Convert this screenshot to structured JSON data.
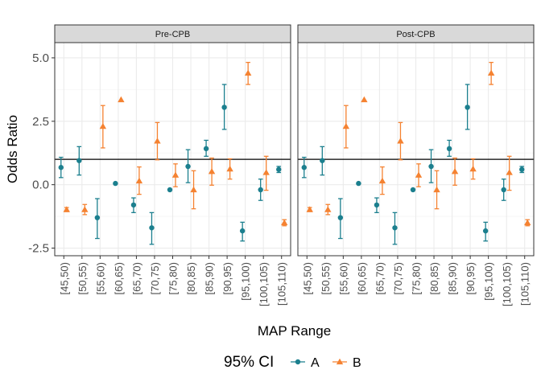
{
  "chart_data": {
    "type": "scatter",
    "subtype": "point-errorbar",
    "xlabel": "MAP Range",
    "ylabel": "Odds Ratio",
    "ylim": [
      -2.8,
      5.6
    ],
    "yticks": [
      -2.5,
      0.0,
      2.5,
      5.0
    ],
    "ytick_labels": [
      "-2.5",
      "0.0",
      "2.5",
      "5.0"
    ],
    "reference_line_y": 1,
    "grid": true,
    "legend": {
      "title": "95% CI",
      "position": "bottom"
    },
    "categories": [
      "[45,50)",
      "[50,55)",
      "[55,60)",
      "[60,65)",
      "[65,70)",
      "[70,75)",
      "[75,80)",
      "[80,85)",
      "[85,90)",
      "[90,95)",
      "[95,100)",
      "[100,105)",
      "[105,110)"
    ],
    "panels": [
      {
        "label": "Pre-CPB",
        "series": [
          {
            "name": "A",
            "color": "#1b7f8e",
            "marker": "circle",
            "points": [
              {
                "x": "[45,50)",
                "y": 0.68,
                "lo": 0.28,
                "hi": 1.08
              },
              {
                "x": "[50,55)",
                "y": 0.95,
                "lo": 0.38,
                "hi": 1.5
              },
              {
                "x": "[55,60)",
                "y": -1.3,
                "lo": -2.12,
                "hi": -0.55
              },
              {
                "x": "[60,65)",
                "y": 0.05,
                "lo": 0.05,
                "hi": 0.05
              },
              {
                "x": "[65,70)",
                "y": -0.8,
                "lo": -1.1,
                "hi": -0.52
              },
              {
                "x": "[70,75)",
                "y": -1.7,
                "lo": -2.35,
                "hi": -1.1
              },
              {
                "x": "[75,80)",
                "y": -0.2,
                "lo": -0.2,
                "hi": -0.2
              },
              {
                "x": "[80,85)",
                "y": 0.72,
                "lo": 0.08,
                "hi": 1.38
              },
              {
                "x": "[85,90)",
                "y": 1.42,
                "lo": 1.12,
                "hi": 1.75
              },
              {
                "x": "[90,95)",
                "y": 3.05,
                "lo": 2.18,
                "hi": 3.95
              },
              {
                "x": "[95,100)",
                "y": -1.82,
                "lo": -2.22,
                "hi": -1.48
              },
              {
                "x": "[100,105)",
                "y": -0.2,
                "lo": -0.62,
                "hi": 0.22
              },
              {
                "x": "[105,110)",
                "y": 0.6,
                "lo": 0.48,
                "hi": 0.72
              }
            ]
          },
          {
            "name": "B",
            "color": "#f58231",
            "marker": "triangle",
            "points": [
              {
                "x": "[45,50)",
                "y": -0.98,
                "lo": -1.06,
                "hi": -0.9
              },
              {
                "x": "[50,55)",
                "y": -0.98,
                "lo": -1.18,
                "hi": -0.78
              },
              {
                "x": "[55,60)",
                "y": 2.3,
                "lo": 1.45,
                "hi": 3.12
              },
              {
                "x": "[60,65)",
                "y": 3.35,
                "lo": 3.35,
                "hi": 3.35
              },
              {
                "x": "[65,70)",
                "y": 0.15,
                "lo": -0.38,
                "hi": 0.7
              },
              {
                "x": "[70,75)",
                "y": 1.72,
                "lo": 0.98,
                "hi": 2.45
              },
              {
                "x": "[75,80)",
                "y": 0.38,
                "lo": -0.08,
                "hi": 0.82
              },
              {
                "x": "[80,85)",
                "y": -0.2,
                "lo": -0.95,
                "hi": 0.55
              },
              {
                "x": "[85,90)",
                "y": 0.52,
                "lo": -0.02,
                "hi": 1.05
              },
              {
                "x": "[90,95)",
                "y": 0.62,
                "lo": 0.22,
                "hi": 1.02
              },
              {
                "x": "[95,100)",
                "y": 4.4,
                "lo": 3.95,
                "hi": 4.82
              },
              {
                "x": "[100,105)",
                "y": 0.48,
                "lo": -0.22,
                "hi": 1.12
              },
              {
                "x": "[105,110)",
                "y": -1.5,
                "lo": -1.62,
                "hi": -1.38
              }
            ]
          }
        ]
      },
      {
        "label": "Post-CPB",
        "series": [
          {
            "name": "A",
            "color": "#1b7f8e",
            "marker": "circle",
            "points": [
              {
                "x": "[45,50)",
                "y": 0.68,
                "lo": 0.28,
                "hi": 1.08
              },
              {
                "x": "[50,55)",
                "y": 0.95,
                "lo": 0.38,
                "hi": 1.5
              },
              {
                "x": "[55,60)",
                "y": -1.3,
                "lo": -2.12,
                "hi": -0.55
              },
              {
                "x": "[60,65)",
                "y": 0.05,
                "lo": 0.05,
                "hi": 0.05
              },
              {
                "x": "[65,70)",
                "y": -0.8,
                "lo": -1.1,
                "hi": -0.52
              },
              {
                "x": "[70,75)",
                "y": -1.7,
                "lo": -2.35,
                "hi": -1.1
              },
              {
                "x": "[75,80)",
                "y": -0.2,
                "lo": -0.2,
                "hi": -0.2
              },
              {
                "x": "[80,85)",
                "y": 0.72,
                "lo": 0.08,
                "hi": 1.38
              },
              {
                "x": "[85,90)",
                "y": 1.42,
                "lo": 1.12,
                "hi": 1.75
              },
              {
                "x": "[90,95)",
                "y": 3.05,
                "lo": 2.18,
                "hi": 3.95
              },
              {
                "x": "[95,100)",
                "y": -1.82,
                "lo": -2.22,
                "hi": -1.48
              },
              {
                "x": "[100,105)",
                "y": -0.2,
                "lo": -0.62,
                "hi": 0.22
              },
              {
                "x": "[105,110)",
                "y": 0.6,
                "lo": 0.48,
                "hi": 0.72
              }
            ]
          },
          {
            "name": "B",
            "color": "#f58231",
            "marker": "triangle",
            "points": [
              {
                "x": "[45,50)",
                "y": -0.98,
                "lo": -1.06,
                "hi": -0.9
              },
              {
                "x": "[50,55)",
                "y": -0.98,
                "lo": -1.18,
                "hi": -0.78
              },
              {
                "x": "[55,60)",
                "y": 2.3,
                "lo": 1.45,
                "hi": 3.12
              },
              {
                "x": "[60,65)",
                "y": 3.35,
                "lo": 3.35,
                "hi": 3.35
              },
              {
                "x": "[65,70)",
                "y": 0.15,
                "lo": -0.38,
                "hi": 0.7
              },
              {
                "x": "[70,75)",
                "y": 1.72,
                "lo": 0.98,
                "hi": 2.45
              },
              {
                "x": "[75,80)",
                "y": 0.38,
                "lo": -0.08,
                "hi": 0.82
              },
              {
                "x": "[80,85)",
                "y": -0.2,
                "lo": -0.95,
                "hi": 0.55
              },
              {
                "x": "[85,90)",
                "y": 0.52,
                "lo": -0.02,
                "hi": 1.05
              },
              {
                "x": "[90,95)",
                "y": 0.62,
                "lo": 0.22,
                "hi": 1.02
              },
              {
                "x": "[95,100)",
                "y": 4.4,
                "lo": 3.95,
                "hi": 4.82
              },
              {
                "x": "[100,105)",
                "y": 0.48,
                "lo": -0.22,
                "hi": 1.12
              },
              {
                "x": "[105,110)",
                "y": -1.5,
                "lo": -1.62,
                "hi": -1.38
              }
            ]
          }
        ]
      }
    ]
  }
}
